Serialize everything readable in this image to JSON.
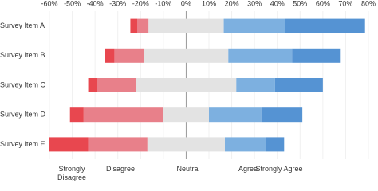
{
  "chart_data": {
    "type": "diverging_bar",
    "categories": [
      "Survey Item A",
      "Survey Item B",
      "Survey Item C",
      "Survey Item D",
      "Survey Item E"
    ],
    "series": [
      {
        "name": "Strongly Disagree",
        "color": "#e8474f",
        "values": [
          3,
          4,
          4,
          6,
          17
        ]
      },
      {
        "name": "Disagree",
        "color": "#e8808a",
        "values": [
          5,
          13,
          17,
          35,
          26
        ]
      },
      {
        "name": "Neutral",
        "color": "#e3e3e3",
        "values": [
          33,
          37,
          44,
          20,
          34
        ]
      },
      {
        "name": "Agree",
        "color": "#7db0e0",
        "values": [
          27,
          28,
          17,
          23,
          18
        ]
      },
      {
        "name": "Strongly Agree",
        "color": "#5593d3",
        "values": [
          35,
          21,
          21,
          18,
          8
        ]
      }
    ],
    "xlim": [
      -60,
      80
    ],
    "xticks": [
      {
        "value": -60,
        "label": "-60%"
      },
      {
        "value": -50,
        "label": "-50%"
      },
      {
        "value": -40,
        "label": "-40%"
      },
      {
        "value": -30,
        "label": "-30%"
      },
      {
        "value": -20,
        "label": "-20%"
      },
      {
        "value": -10,
        "label": "-10%"
      },
      {
        "value": 0,
        "label": "0%"
      },
      {
        "value": 10,
        "label": "10%"
      },
      {
        "value": 20,
        "label": "20%"
      },
      {
        "value": 30,
        "label": "30%"
      },
      {
        "value": 40,
        "label": "40%"
      },
      {
        "value": 50,
        "label": "50%"
      },
      {
        "value": 60,
        "label": "60%"
      },
      {
        "value": 70,
        "label": "70%"
      },
      {
        "value": 80,
        "label": "80%"
      }
    ],
    "grid": true
  }
}
